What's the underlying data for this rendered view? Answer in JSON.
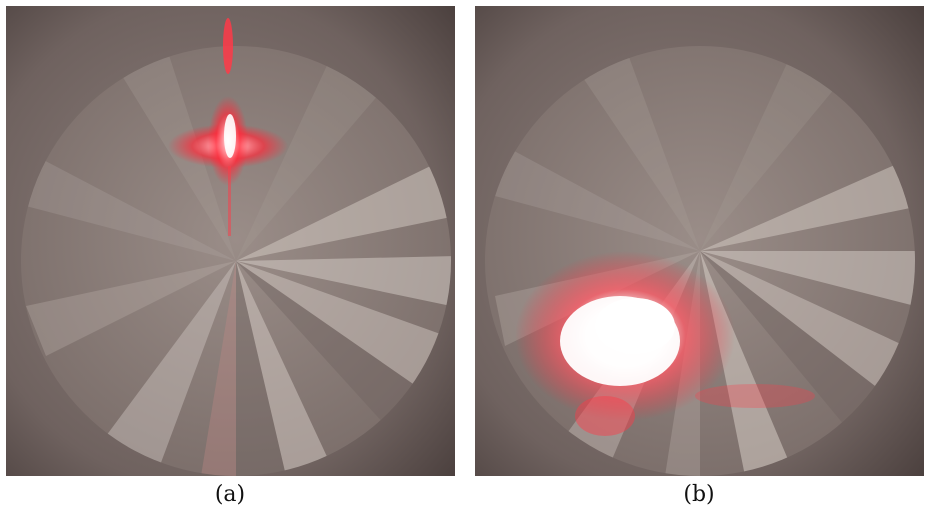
{
  "panels": [
    {
      "id": "a",
      "caption": "(a)"
    },
    {
      "id": "b",
      "caption": "(b)"
    }
  ],
  "colors": {
    "housing": "#5a4e4b",
    "disc": "#8c7f7b",
    "sector_light": "#cfc6c0",
    "sector_dark": "#6e625f",
    "laser_red": "#ff2a3a",
    "laser_white": "#ffffff"
  }
}
